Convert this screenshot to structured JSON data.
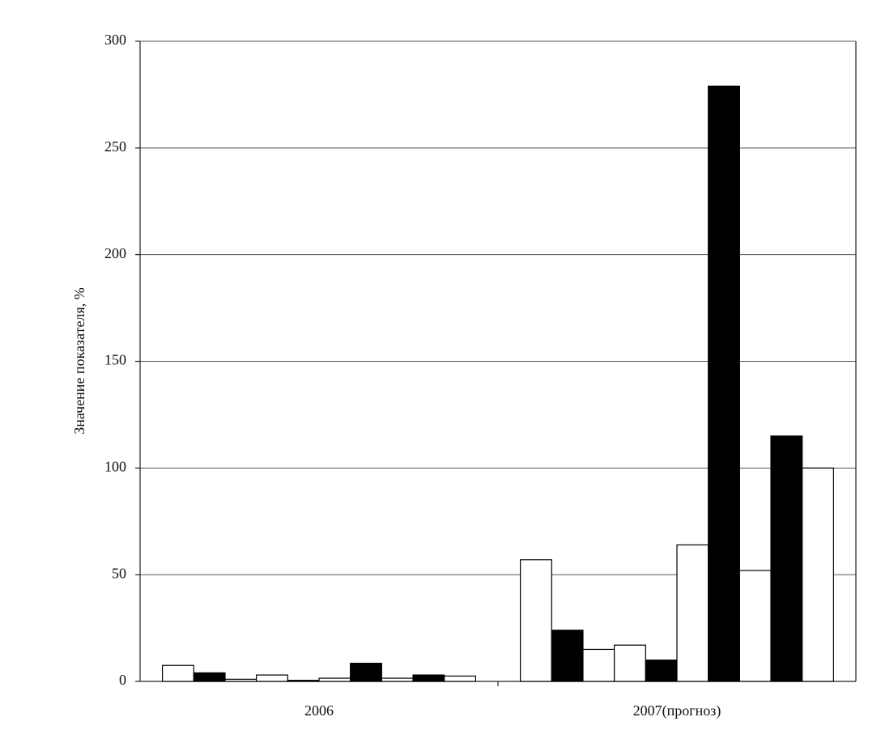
{
  "chart_data": {
    "type": "bar",
    "y_label": "Значение показателя, %",
    "categories": [
      "2006",
      "2007(прогноз)"
    ],
    "series": [
      {
        "color": "#ffffff",
        "values": [
          7.5,
          57
        ]
      },
      {
        "color": "#000000",
        "values": [
          4,
          24
        ]
      },
      {
        "color": "#ffffff",
        "values": [
          1,
          15
        ]
      },
      {
        "color": "#ffffff",
        "values": [
          3,
          17
        ]
      },
      {
        "color": "#000000",
        "values": [
          0.5,
          10
        ]
      },
      {
        "color": "#ffffff",
        "values": [
          1.5,
          64
        ]
      },
      {
        "color": "#000000",
        "values": [
          8.5,
          279
        ]
      },
      {
        "color": "#ffffff",
        "values": [
          1.5,
          52
        ]
      },
      {
        "color": "#000000",
        "values": [
          3,
          115
        ]
      },
      {
        "color": "#ffffff",
        "values": [
          2.5,
          100
        ]
      }
    ],
    "ylim": [
      0,
      300
    ],
    "yticks": [
      0,
      50,
      100,
      150,
      200,
      250,
      300
    ],
    "grid": true
  }
}
